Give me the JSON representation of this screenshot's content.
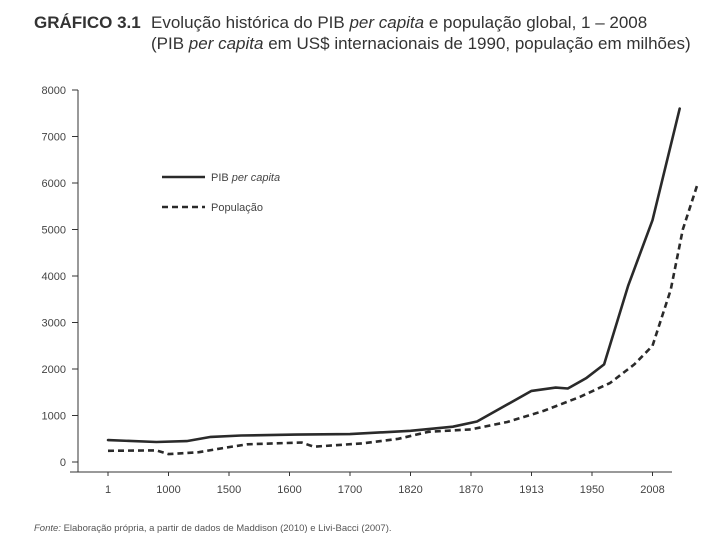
{
  "figure": {
    "label": "GRÁFICO 3.1",
    "title_pre": "Evolução histórica do PIB ",
    "title_em": "per capita",
    "title_post": " e população global, 1 – 2008",
    "subtitle_pre": "(PIB ",
    "subtitle_em": "per capita",
    "subtitle_post": " em US$ internacionais de 1990, população em milhões)",
    "source_label": "Fonte:",
    "source_text": " Elaboração própria, a partir de dados de Maddison (2010) e Livi-Bacci (2007)."
  },
  "chart_data": {
    "type": "line",
    "title": "Evolução histórica do PIB per capita e população global, 1 – 2008",
    "subtitle": "(PIB per capita em US$ internacionais de 1990, população em milhões)",
    "xlabel": "",
    "ylabel": "",
    "categories": [
      "1",
      "1000",
      "1500",
      "1600",
      "1700",
      "1820",
      "1870",
      "1913",
      "1950",
      "2008"
    ],
    "yticks": [
      "0",
      "1000",
      "2000",
      "3000",
      "4000",
      "5000",
      "6000",
      "7000",
      "8000"
    ],
    "ylim": [
      0,
      8000
    ],
    "legend_position": "upper-left",
    "series": [
      {
        "name": "PIB per capita",
        "name_pre": "PIB ",
        "name_em": "per capita",
        "style": "solid",
        "points": [
          [
            0,
            470
          ],
          [
            0.8,
            430
          ],
          [
            1.3,
            450
          ],
          [
            1.7,
            540
          ],
          [
            2.2,
            570
          ],
          [
            3.1,
            590
          ],
          [
            4,
            600
          ],
          [
            5,
            670
          ],
          [
            5.7,
            760
          ],
          [
            6.1,
            870
          ],
          [
            7,
            1530
          ],
          [
            7.4,
            1600
          ],
          [
            7.6,
            1580
          ],
          [
            7.9,
            1800
          ],
          [
            8.2,
            2100
          ],
          [
            8.6,
            3800
          ],
          [
            9,
            5200
          ],
          [
            9.45,
            7600
          ]
        ]
      },
      {
        "name": "População",
        "style": "dashed",
        "points": [
          [
            0,
            240
          ],
          [
            0.8,
            250
          ],
          [
            1,
            170
          ],
          [
            1.5,
            210
          ],
          [
            1.9,
            300
          ],
          [
            2.3,
            380
          ],
          [
            3.2,
            420
          ],
          [
            3.4,
            330
          ],
          [
            4.2,
            400
          ],
          [
            4.8,
            500
          ],
          [
            5.3,
            650
          ],
          [
            6,
            700
          ],
          [
            6.6,
            860
          ],
          [
            7.2,
            1100
          ],
          [
            7.8,
            1400
          ],
          [
            8.3,
            1700
          ],
          [
            8.7,
            2100
          ],
          [
            9,
            2500
          ],
          [
            9.3,
            3700
          ],
          [
            9.5,
            5000
          ],
          [
            9.75,
            6000
          ]
        ]
      }
    ]
  }
}
